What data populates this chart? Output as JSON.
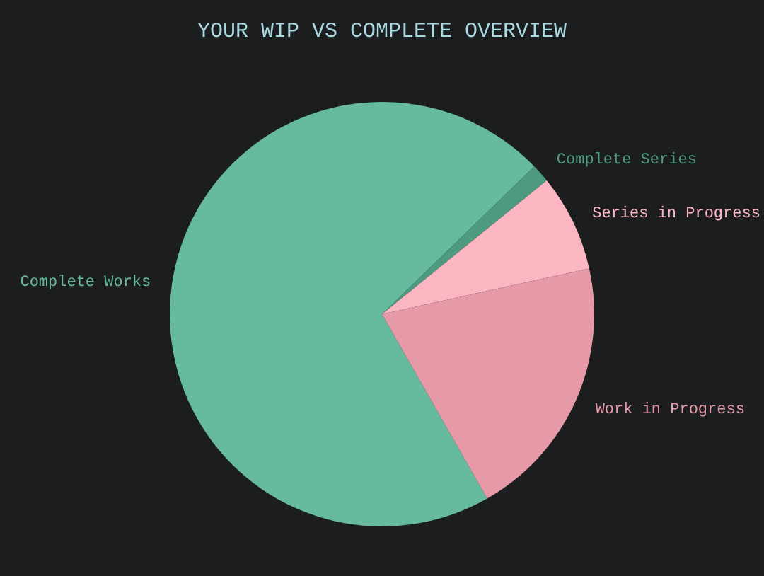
{
  "chart_data": {
    "type": "pie",
    "title": "YOUR WIP VS COMPLETE OVERVIEW",
    "categories": [
      "Complete Works",
      "Complete Series",
      "Series in Progress",
      "Work in Progress"
    ],
    "values": [
      71,
      1.4,
      7.4,
      20.2
    ],
    "colors": [
      "#66bb9f",
      "#4e9a80",
      "#fbb6c1",
      "#e69aa8"
    ],
    "legend": false
  }
}
